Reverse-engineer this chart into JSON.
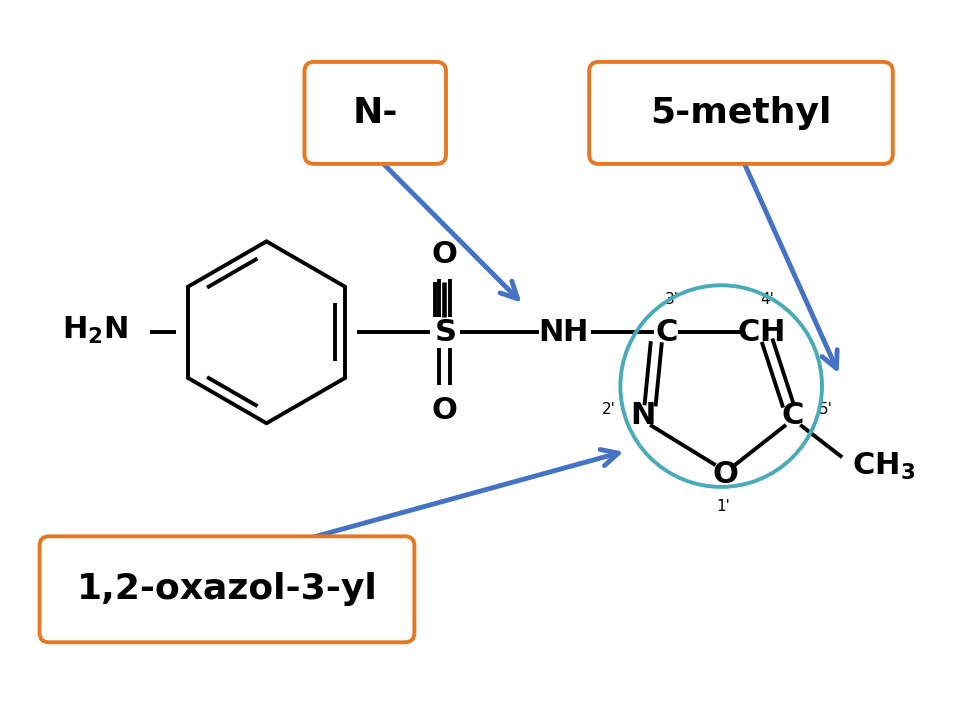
{
  "bg_color": "#ffffff",
  "orange_color": "#E87722",
  "blue_color": "#4472C4",
  "teal_color": "#4AABB8",
  "black_color": "#000000",
  "figsize": [
    9.6,
    7.2
  ],
  "dpi": 100,
  "xlim": [
    0,
    12
  ],
  "ylim": [
    0,
    9
  ]
}
